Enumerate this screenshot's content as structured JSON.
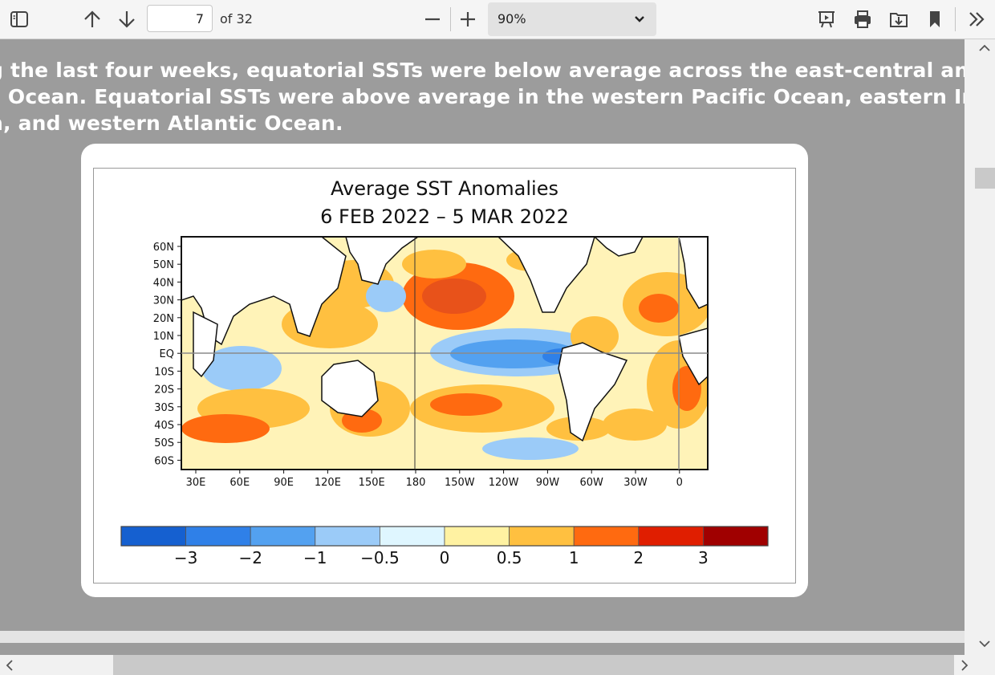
{
  "toolbar": {
    "page_current": "7",
    "page_of": "of 32",
    "zoom_value": "90%"
  },
  "document": {
    "text_lines": [
      "g the last four weeks, equatorial SSTs were below average across the east-central and eastern",
      "c Ocean.   Equatorial SSTs were above average in the western Pacific Ocean, eastern Indian",
      "n, and western Atlantic Ocean."
    ]
  },
  "figure": {
    "title": "Average  SST  Anomalies",
    "subtitle": "6  FEB  2022  –  5  MAR  2022",
    "lat_labels": [
      "60N",
      "50N",
      "40N",
      "30N",
      "20N",
      "10N",
      "EQ",
      "10S",
      "20S",
      "30S",
      "40S",
      "50S",
      "60S"
    ],
    "lon_labels": [
      "30E",
      "60E",
      "90E",
      "120E",
      "150E",
      "180",
      "150W",
      "120W",
      "90W",
      "60W",
      "30W",
      "0"
    ],
    "colorbar_labels": [
      "−3",
      "−2",
      "−1",
      "−0.5",
      "0",
      "0.5",
      "1",
      "2",
      "3"
    ],
    "colorbar_colors": [
      "#1560d0",
      "#2f80e8",
      "#53a1f0",
      "#9bcbf8",
      "#dff6ff",
      "#fff2a2",
      "#ffc040",
      "#ff6a10",
      "#e01e00",
      "#a00000"
    ]
  },
  "icons": [
    "sidebar-toggle-icon",
    "arrow-up-icon",
    "arrow-down-icon",
    "minus-icon",
    "plus-icon",
    "chevron-down-icon",
    "presentation-icon",
    "print-icon",
    "save-icon",
    "bookmark-icon",
    "double-chevron-right-icon",
    "chevron-up-icon",
    "chevron-down-icon",
    "chevron-left-icon",
    "chevron-right-icon"
  ]
}
